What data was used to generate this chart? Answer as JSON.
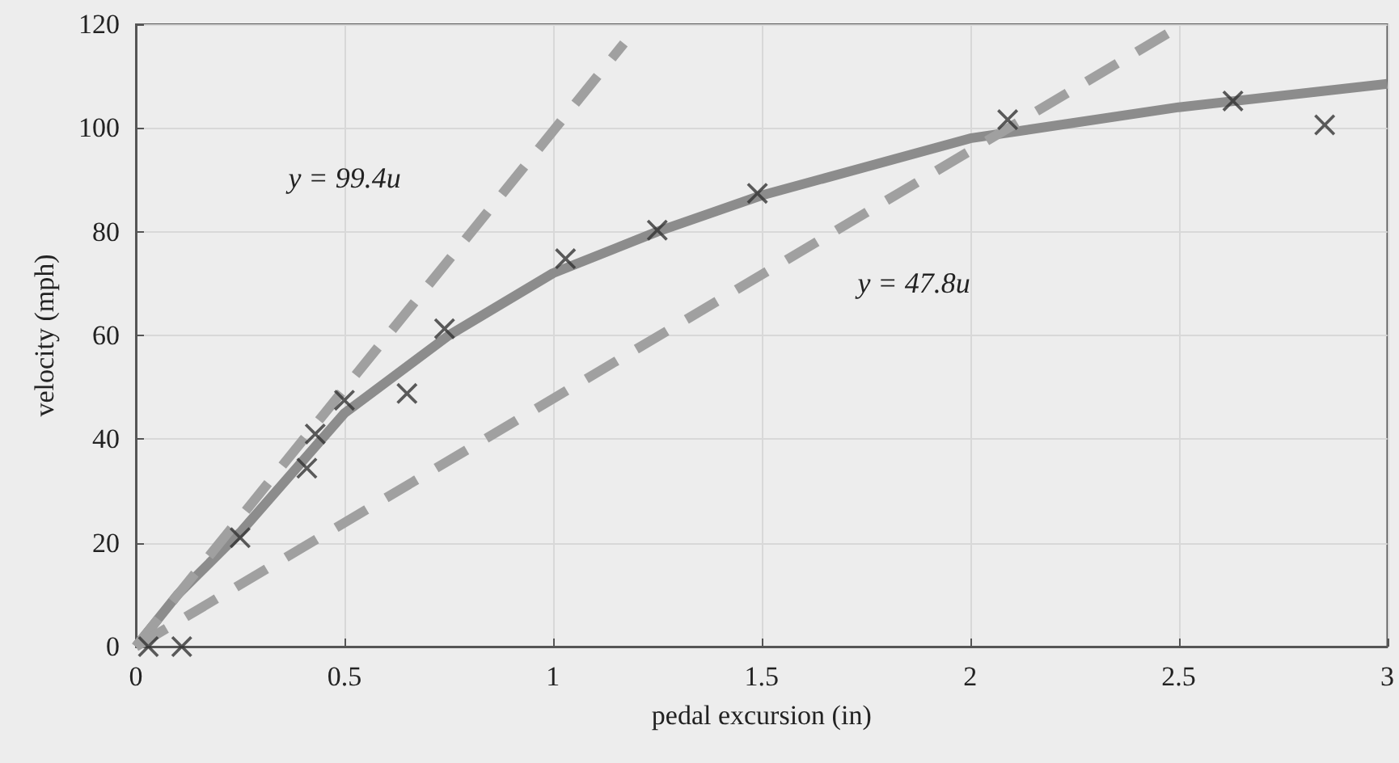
{
  "chart_data": {
    "type": "scatter",
    "xlabel": "pedal excursion (in)",
    "ylabel": "velocity (mph)",
    "xlim": [
      0,
      3
    ],
    "ylim": [
      0,
      120
    ],
    "xticks": [
      0,
      0.5,
      1,
      1.5,
      2,
      2.5,
      3
    ],
    "yticks": [
      0,
      20,
      40,
      60,
      80,
      100,
      120
    ],
    "grid": true,
    "series": [
      {
        "type": "line",
        "color": "#8c8c8c",
        "marker": "none",
        "line_style": "solid",
        "x": [
          0,
          0.1,
          0.25,
          0.5,
          0.75,
          1,
          1.25,
          1.5,
          2,
          2.5,
          3
        ],
        "values": [
          0,
          10,
          22,
          45,
          60,
          72,
          80,
          87,
          98,
          104,
          108.5
        ]
      },
      {
        "type": "line",
        "color": "#a0a0a0",
        "marker": "none",
        "line_style": "dashed",
        "x": [
          0,
          1.17
        ],
        "values": [
          0,
          116.3
        ]
      },
      {
        "type": "line",
        "color": "#a0a0a0",
        "marker": "none",
        "line_style": "dashed",
        "x": [
          0,
          2.5
        ],
        "values": [
          0,
          119.5
        ]
      },
      {
        "color": "#333333",
        "marker": "cross",
        "x": [
          0.03,
          0.11,
          0.25,
          0.41,
          0.43,
          0.5,
          0.65,
          0.74,
          1.03,
          1.25,
          1.49,
          2.09,
          2.63,
          2.85
        ],
        "values": [
          0,
          0,
          21,
          34.4,
          41,
          47.5,
          48.8,
          61.3,
          74.8,
          80.3,
          87.4,
          101.6,
          105.2,
          100.6
        ]
      }
    ],
    "annotations": [
      "y = 99.4u",
      "y = 47.8u"
    ]
  }
}
